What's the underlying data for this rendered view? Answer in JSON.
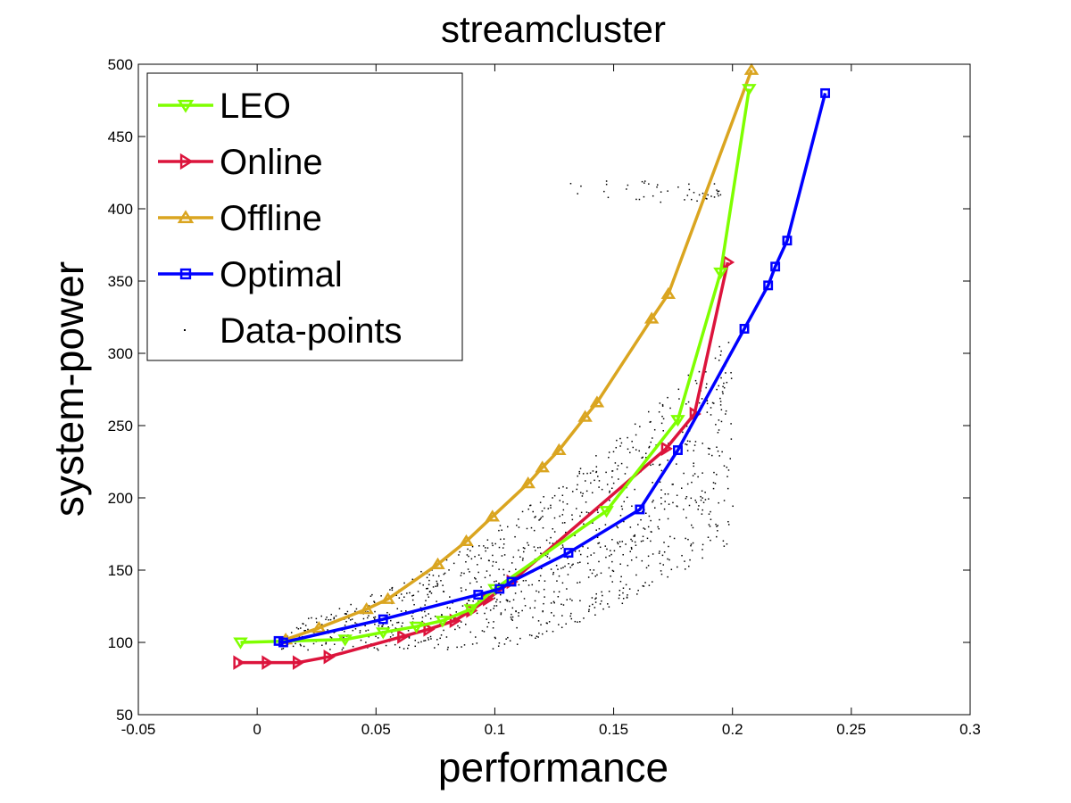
{
  "chart_data": {
    "type": "line",
    "title": "streamcluster",
    "xlabel": "performance",
    "ylabel": "system-power",
    "xlim": [
      -0.05,
      0.3
    ],
    "ylim": [
      50,
      500
    ],
    "xticks": [
      -0.05,
      0,
      0.05,
      0.1,
      0.15,
      0.2,
      0.25,
      0.3
    ],
    "xtick_labels": [
      "-0.05",
      "0",
      "0.05",
      "0.1",
      "0.15",
      "0.2",
      "0.25",
      "0.3"
    ],
    "yticks": [
      50,
      100,
      150,
      200,
      250,
      300,
      350,
      400,
      450,
      500
    ],
    "ytick_labels": [
      "50",
      "100",
      "150",
      "200",
      "250",
      "300",
      "350",
      "400",
      "450",
      "500"
    ],
    "grid": false,
    "legend_position": "top-left",
    "series": [
      {
        "name": "LEO",
        "color": "#7fff00",
        "marker": "triangle-down",
        "x": [
          -0.007,
          0.037,
          0.053,
          0.067,
          0.078,
          0.09,
          0.1,
          0.147,
          0.177,
          0.195,
          0.207
        ],
        "y": [
          100,
          102,
          107,
          111,
          115,
          123,
          137,
          191,
          254,
          356,
          483
        ]
      },
      {
        "name": "Online",
        "color": "#dc143c",
        "marker": "triangle-right",
        "x": [
          -0.008,
          0.004,
          0.017,
          0.03,
          0.061,
          0.072,
          0.083,
          0.09,
          0.097,
          0.107,
          0.172,
          0.184,
          0.198
        ],
        "y": [
          86,
          86,
          86,
          90,
          104,
          109,
          115,
          122,
          130,
          142,
          234,
          258,
          363
        ]
      },
      {
        "name": "Offline",
        "color": "#daa520",
        "marker": "triangle-up",
        "x": [
          0.012,
          0.026,
          0.046,
          0.055,
          0.076,
          0.088,
          0.099,
          0.114,
          0.12,
          0.127,
          0.138,
          0.143,
          0.166,
          0.173,
          0.208
        ],
        "y": [
          102,
          110,
          123,
          130,
          154,
          170,
          187,
          210,
          221,
          233,
          256,
          266,
          324,
          341,
          496
        ]
      },
      {
        "name": "Optimal",
        "color": "#0000ff",
        "marker": "square",
        "x": [
          0.009,
          0.011,
          0.053,
          0.093,
          0.102,
          0.107,
          0.131,
          0.161,
          0.177,
          0.205,
          0.215,
          0.218,
          0.223,
          0.239
        ],
        "y": [
          101,
          100,
          116,
          133,
          137,
          142,
          162,
          192,
          233,
          317,
          347,
          360,
          378,
          480
        ]
      }
    ],
    "scatter": {
      "name": "Data-points",
      "color": "#000000"
    }
  }
}
